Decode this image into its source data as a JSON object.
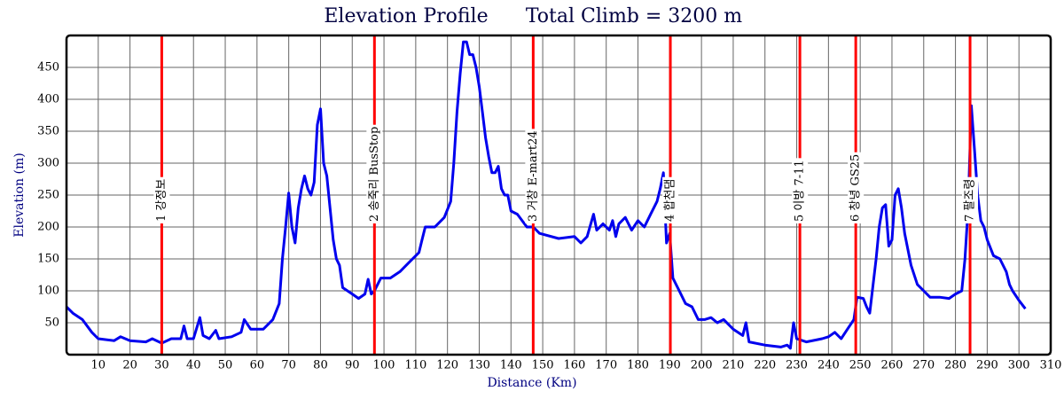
{
  "chart_data": {
    "type": "line",
    "title": "Elevation Profile",
    "subtitle": "Total Climb = 3200 m",
    "x_label": "Distance (Km)",
    "y_label": "Elevation (m)",
    "xlim": [
      0,
      310
    ],
    "ylim": [
      0,
      500
    ],
    "xticks": [
      10,
      20,
      30,
      40,
      50,
      60,
      70,
      80,
      90,
      100,
      110,
      120,
      130,
      140,
      150,
      160,
      170,
      180,
      190,
      200,
      210,
      220,
      230,
      240,
      250,
      260,
      270,
      280,
      290,
      300,
      310
    ],
    "yticks": [
      50,
      100,
      150,
      200,
      250,
      300,
      350,
      400,
      450
    ],
    "grid": true,
    "color": "#0000ee",
    "marker_color": "#ff0000",
    "markers": [
      {
        "x": 30,
        "label": "1 강정보"
      },
      {
        "x": 97,
        "label": "2 송죽리 BusStop"
      },
      {
        "x": 147,
        "label": "3 거창 E-mart24"
      },
      {
        "x": 190.2,
        "label": "4 합천댐"
      },
      {
        "x": 231,
        "label": "5 이방 7-11"
      },
      {
        "x": 248.6,
        "label": "6 창녕 GS25"
      },
      {
        "x": 284.6,
        "label": "7 팔조령"
      }
    ],
    "x": [
      0,
      2,
      5,
      8,
      10,
      15,
      17,
      20,
      25,
      27,
      30,
      33,
      36,
      37,
      38,
      40,
      42,
      43,
      45,
      47,
      48,
      52,
      55,
      56,
      58,
      62,
      65,
      67,
      68,
      69,
      70,
      71,
      72,
      73,
      74,
      75,
      76,
      77,
      78,
      79,
      80,
      81,
      82,
      83,
      84,
      85,
      86,
      87,
      90,
      92,
      94,
      95,
      96,
      97,
      98,
      99,
      102,
      105,
      108,
      111,
      112,
      113,
      116,
      119,
      121,
      122,
      123,
      124,
      125,
      126,
      127,
      128,
      129,
      130,
      131,
      132,
      133,
      134,
      135,
      136,
      137,
      138,
      139,
      140,
      142,
      145,
      147,
      149,
      155,
      160,
      162,
      164,
      166,
      167,
      169,
      171,
      172,
      173,
      174,
      176,
      178,
      180,
      182,
      184,
      186,
      187,
      188,
      189,
      190,
      191,
      193,
      195,
      197,
      199,
      201,
      203,
      205,
      207,
      210,
      213,
      214,
      215,
      220,
      225,
      227,
      228,
      229,
      230,
      233,
      238,
      240,
      242,
      244,
      246,
      248,
      249,
      251,
      252,
      253,
      255,
      256,
      257,
      258,
      259,
      260,
      261,
      262,
      263,
      264,
      266,
      268,
      270,
      272,
      275,
      278,
      280,
      282,
      283,
      284,
      285,
      286,
      287,
      288,
      289,
      290,
      292,
      294,
      296,
      297,
      298,
      300,
      302
    ],
    "values": [
      75,
      65,
      55,
      35,
      25,
      22,
      28,
      22,
      20,
      25,
      18,
      25,
      25,
      45,
      25,
      25,
      58,
      30,
      25,
      38,
      25,
      28,
      35,
      55,
      40,
      40,
      55,
      80,
      150,
      200,
      253,
      200,
      175,
      230,
      260,
      280,
      260,
      250,
      270,
      360,
      385,
      300,
      280,
      230,
      180,
      150,
      140,
      105,
      95,
      88,
      95,
      118,
      95,
      100,
      110,
      120,
      120,
      130,
      145,
      160,
      180,
      200,
      200,
      215,
      240,
      300,
      380,
      440,
      490,
      490,
      470,
      470,
      450,
      420,
      380,
      340,
      310,
      285,
      285,
      295,
      260,
      250,
      250,
      225,
      220,
      200,
      200,
      190,
      182,
      185,
      175,
      185,
      220,
      195,
      205,
      195,
      210,
      185,
      205,
      215,
      195,
      210,
      200,
      220,
      240,
      260,
      285,
      175,
      190,
      120,
      100,
      80,
      75,
      55,
      55,
      58,
      50,
      55,
      40,
      30,
      50,
      20,
      15,
      12,
      15,
      10,
      50,
      25,
      20,
      25,
      28,
      35,
      25,
      40,
      55,
      90,
      88,
      75,
      65,
      150,
      200,
      230,
      235,
      170,
      180,
      250,
      260,
      230,
      190,
      140,
      110,
      100,
      90,
      90,
      88,
      95,
      100,
      150,
      230,
      390,
      320,
      250,
      210,
      200,
      180,
      155,
      150,
      130,
      110,
      100,
      85,
      72
    ]
  }
}
